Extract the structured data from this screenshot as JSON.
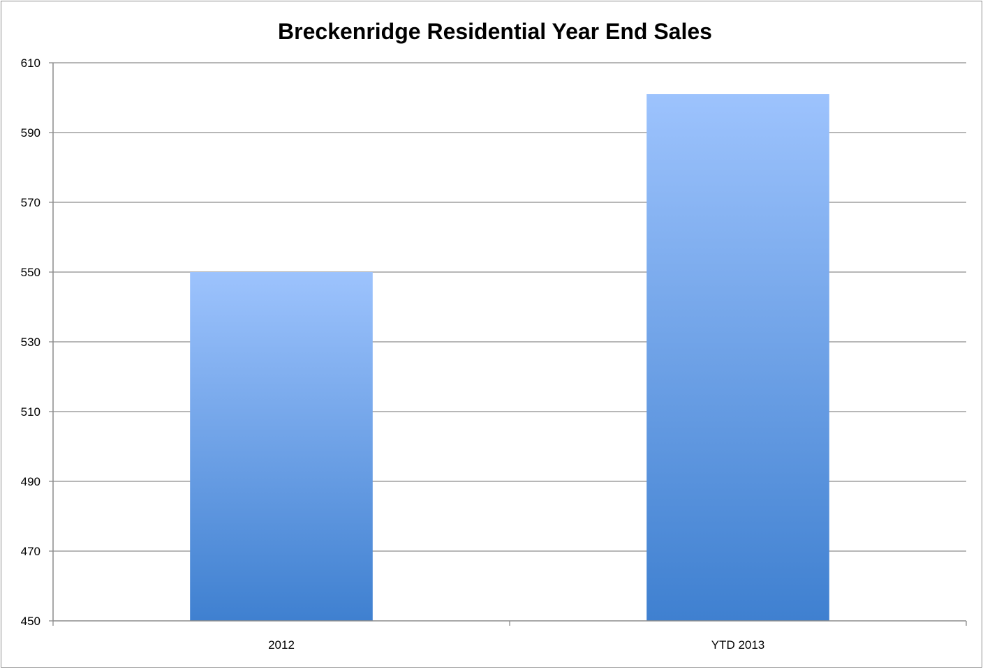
{
  "chart_data": {
    "type": "bar",
    "title": "Breckenridge Residential Year End Sales",
    "categories": [
      "2012",
      "YTD 2013"
    ],
    "values": [
      550,
      601
    ],
    "xlabel": "",
    "ylabel": "",
    "ylim": [
      450,
      610
    ],
    "yticks": [
      "450",
      "470",
      "490",
      "510",
      "530",
      "550",
      "570",
      "590",
      "610"
    ],
    "grid": true,
    "legend": "none",
    "colors": {
      "bar_top": "#9dc3fd",
      "bar_bottom": "#3f80d0",
      "grid": "#8c8c8c",
      "axis": "#8c8c8c"
    }
  }
}
